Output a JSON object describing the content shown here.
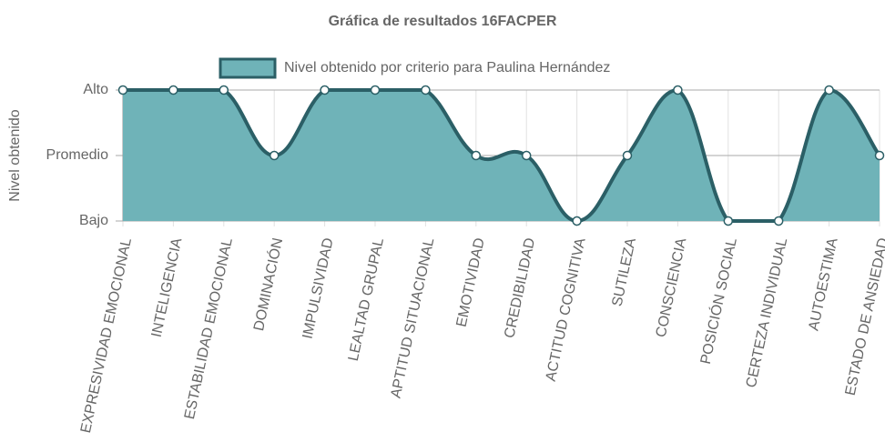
{
  "chart_data": {
    "type": "line",
    "title": "Gráfica de resultados 16FACPER",
    "y_label": "Nivel obtenido",
    "categories": [
      "EXPRESIVIDAD EMOCIONAL",
      "INTELIGENCIA",
      "ESTABILIDAD EMOCIONAL",
      "DOMINACIÓN",
      "IMPULSIVIDAD",
      "LEALTAD GRUPAL",
      "APTITUD SITUACIONAL",
      "EMOTIVIDAD",
      "CREDIBILIDAD",
      "ACTITUD COGNITIVA",
      "SUTILEZA",
      "CONSCIENCIA",
      "POSICIÓN SOCIAL",
      "CERTEZA INDIVIDUAL",
      "AUTOESTIMA",
      "ESTADO DE ANSIEDAD"
    ],
    "series": [
      {
        "name": "Nivel obtenido por criterio para Paulina Hernández",
        "color": "#2b5f66",
        "fill": "#6fb3b8",
        "values": [
          3,
          3,
          3,
          2,
          3,
          3,
          3,
          2,
          2,
          1,
          2,
          3,
          1,
          1,
          3,
          2
        ]
      }
    ],
    "ylim": [
      1,
      3
    ],
    "yticks": [
      {
        "value": 1,
        "label": "Bajo"
      },
      {
        "value": 2,
        "label": "Promedio"
      },
      {
        "value": 3,
        "label": "Alto"
      }
    ],
    "grid": true,
    "legend": "top"
  }
}
